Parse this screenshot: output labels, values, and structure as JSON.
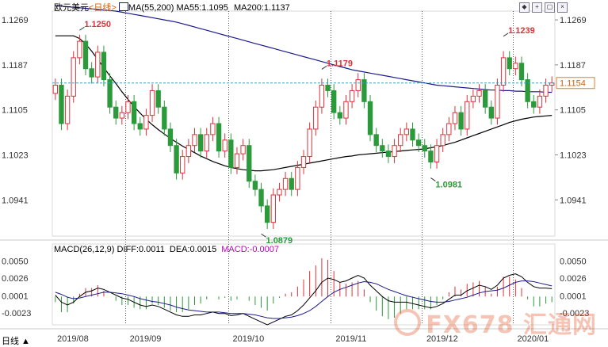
{
  "header": {
    "symbol": "欧元美元",
    "timeframe": "<日线>",
    "ma_label": "MA(55,200)",
    "ma55_label": "MA55:1.1095",
    "ma200_label": "MA200:1.1137"
  },
  "toolbar": {
    "btn1": "◆",
    "btn2": "+",
    "btn3": "▢",
    "btn4": "×"
  },
  "macd_header": {
    "label": "MACD(26,12,9)",
    "diff": "DIFF:0.0011",
    "dea": "DEA:0.0015",
    "macd": "MACD:-0.0007"
  },
  "corner_label": "日线 ▲",
  "watermark": "FX678 汇通网",
  "colors": {
    "up": "#e0303a",
    "down": "#2a9a3a",
    "ma200": "#1a1a8c",
    "ma55": "#000000",
    "macd_color": "#c000c0",
    "price_line": "#3aa0c0"
  },
  "chart_data": {
    "type": "candlestick",
    "price_axis_ticks": [
      "1.1269",
      "1.1187",
      "1.1105",
      "1.1023",
      "1.0941"
    ],
    "price_axis_values": [
      1.1269,
      1.1187,
      1.1105,
      1.1023,
      1.0941
    ],
    "ylim": [
      1.0875,
      1.1285
    ],
    "current_price": "1.1154",
    "macd_axis_ticks": [
      "0.0050",
      "0.0026",
      "0.0001",
      "-0.0023"
    ],
    "macd_axis_values": [
      0.005,
      0.0026,
      0.0001,
      -0.0023
    ],
    "macd_ylim": [
      -0.004,
      0.0063
    ],
    "x_labels": [
      "2019/08",
      "2019/09",
      "2019/10",
      "2019/11",
      "2019/12",
      "2020/01"
    ],
    "annotations": [
      {
        "text": "1.1250",
        "value": 1.125,
        "index": 4,
        "color": "#e0303a"
      },
      {
        "text": "1.1179",
        "value": 1.1179,
        "index": 44,
        "color": "#e0303a"
      },
      {
        "text": "1.0879",
        "value": 1.0879,
        "index": 34,
        "color": "#2a9a3a"
      },
      {
        "text": "1.0981",
        "value": 1.0981,
        "index": 62,
        "color": "#2a9a3a"
      },
      {
        "text": "1.1239",
        "value": 1.1239,
        "index": 74,
        "color": "#e0303a"
      }
    ],
    "close": [
      1.115,
      1.108,
      1.113,
      1.12,
      1.123,
      1.118,
      1.1165,
      1.121,
      1.116,
      1.111,
      1.109,
      1.11,
      1.112,
      1.108,
      1.107,
      1.1095,
      1.114,
      1.111,
      1.107,
      1.104,
      1.099,
      1.102,
      1.104,
      1.106,
      1.103,
      1.106,
      1.108,
      1.103,
      1.105,
      1.1,
      1.1025,
      1.104,
      1.0975,
      1.096,
      1.093,
      1.09,
      1.095,
      1.096,
      1.098,
      1.096,
      1.1,
      1.102,
      1.107,
      1.111,
      1.115,
      1.114,
      1.11,
      1.109,
      1.112,
      1.114,
      1.116,
      1.112,
      1.106,
      1.104,
      1.103,
      1.102,
      1.104,
      1.106,
      1.107,
      1.105,
      1.104,
      1.103,
      1.101,
      1.104,
      1.106,
      1.108,
      1.11,
      1.107,
      1.112,
      1.113,
      1.114,
      1.111,
      1.109,
      1.115,
      1.12,
      1.118,
      1.119,
      1.116,
      1.112,
      1.111,
      1.113,
      1.115,
      1.1154
    ],
    "ma55": [
      1.124,
      1.124,
      1.124,
      1.124,
      1.1235,
      1.1225,
      1.1212,
      1.1197,
      1.1182,
      1.1167,
      1.1153,
      1.1138,
      1.1124,
      1.1111,
      1.1099,
      1.1088,
      1.1078,
      1.1069,
      1.1061,
      1.1053,
      1.1046,
      1.1039,
      1.1033,
      1.1027,
      1.1021,
      1.1016,
      1.1011,
      1.1007,
      1.1003,
      1.1,
      1.0998,
      1.0996,
      1.0995,
      1.0994,
      1.0994,
      1.0995,
      1.0996,
      1.0998,
      1.1,
      1.1002,
      1.1004,
      1.1006,
      1.1008,
      1.101,
      1.1012,
      1.1014,
      1.1016,
      1.1018,
      1.102,
      1.1021,
      1.1023,
      1.1024,
      1.1025,
      1.1026,
      1.1027,
      1.1028,
      1.1029,
      1.103,
      1.1031,
      1.1032,
      1.1033,
      1.1034,
      1.1036,
      1.1038,
      1.104,
      1.1043,
      1.1046,
      1.105,
      1.1054,
      1.1058,
      1.1062,
      1.1066,
      1.107,
      1.1074,
      1.1078,
      1.1082,
      1.1085,
      1.1088,
      1.109,
      1.1092,
      1.1093,
      1.1094,
      1.1095
    ],
    "ma200": [
      1.1295,
      1.1294,
      1.1293,
      1.1292,
      1.1291,
      1.129,
      1.1289,
      1.1288,
      1.1287,
      1.1286,
      1.1285,
      1.1283,
      1.1281,
      1.1279,
      1.1277,
      1.1275,
      1.1273,
      1.1271,
      1.1269,
      1.1267,
      1.1265,
      1.1262,
      1.1259,
      1.1256,
      1.1253,
      1.125,
      1.1247,
      1.1244,
      1.1241,
      1.1238,
      1.1235,
      1.1232,
      1.1229,
      1.1226,
      1.1223,
      1.122,
      1.1217,
      1.1214,
      1.1211,
      1.1208,
      1.1205,
      1.1202,
      1.1199,
      1.1196,
      1.1193,
      1.119,
      1.1187,
      1.1184,
      1.1181,
      1.1178,
      1.1176,
      1.1174,
      1.1172,
      1.117,
      1.1168,
      1.1166,
      1.1164,
      1.1162,
      1.116,
      1.1158,
      1.1156,
      1.1154,
      1.1152,
      1.115,
      1.1149,
      1.1148,
      1.1147,
      1.1146,
      1.1145,
      1.1144,
      1.1143,
      1.1142,
      1.1141,
      1.1141,
      1.114,
      1.114,
      1.1139,
      1.1139,
      1.1138,
      1.1138,
      1.1138,
      1.1137,
      1.1137
    ],
    "diff": [
      0.0002,
      -0.0008,
      -0.0012,
      -0.0008,
      0.0,
      0.0006,
      0.0008,
      0.0012,
      0.001,
      0.0006,
      0.0002,
      -0.0002,
      -0.0004,
      -0.0008,
      -0.0012,
      -0.0014,
      -0.0012,
      -0.0014,
      -0.0018,
      -0.0022,
      -0.0026,
      -0.0028,
      -0.0028,
      -0.0026,
      -0.0026,
      -0.0024,
      -0.0022,
      -0.0024,
      -0.0024,
      -0.0027,
      -0.0026,
      -0.0024,
      -0.0028,
      -0.0032,
      -0.0036,
      -0.004,
      -0.0036,
      -0.0032,
      -0.0028,
      -0.0026,
      -0.002,
      -0.0012,
      -0.0002,
      0.0008,
      0.002,
      0.0026,
      0.0024,
      0.002,
      0.0022,
      0.0026,
      0.003,
      0.0026,
      0.0016,
      0.0008,
      0.0,
      -0.0006,
      -0.0008,
      -0.0008,
      -0.0008,
      -0.001,
      -0.0012,
      -0.0014,
      -0.0016,
      -0.0014,
      -0.001,
      -0.0004,
      0.0002,
      0.0002,
      0.0008,
      0.0012,
      0.0016,
      0.0014,
      0.001,
      0.0016,
      0.0026,
      0.003,
      0.0032,
      0.0028,
      0.002,
      0.0014,
      0.0012,
      0.0012,
      0.0011
    ],
    "dea": [
      0.0006,
      0.0003,
      -0.0001,
      -0.0003,
      -0.0002,
      0.0,
      0.0002,
      0.0004,
      0.0006,
      0.0006,
      0.0005,
      0.0004,
      0.0002,
      0.0,
      -0.0003,
      -0.0005,
      -0.0007,
      -0.0008,
      -0.001,
      -0.0012,
      -0.0015,
      -0.0017,
      -0.0019,
      -0.002,
      -0.0021,
      -0.0022,
      -0.0022,
      -0.0022,
      -0.0023,
      -0.0024,
      -0.0024,
      -0.0024,
      -0.0025,
      -0.0026,
      -0.0028,
      -0.003,
      -0.0031,
      -0.0031,
      -0.003,
      -0.0029,
      -0.0027,
      -0.0024,
      -0.002,
      -0.0014,
      -0.0007,
      0.0,
      0.0006,
      0.001,
      0.0013,
      0.0016,
      0.0019,
      0.0021,
      0.002,
      0.0018,
      0.0014,
      0.001,
      0.0007,
      0.0004,
      0.0001,
      -0.0001,
      -0.0003,
      -0.0005,
      -0.0007,
      -0.0008,
      -0.0008,
      -0.0007,
      -0.0005,
      -0.0003,
      -0.0001,
      0.0002,
      0.0005,
      0.0007,
      0.0008,
      0.0009,
      0.0012,
      0.0016,
      0.002,
      0.0022,
      0.0022,
      0.0021,
      0.0019,
      0.0017,
      0.0015
    ]
  }
}
